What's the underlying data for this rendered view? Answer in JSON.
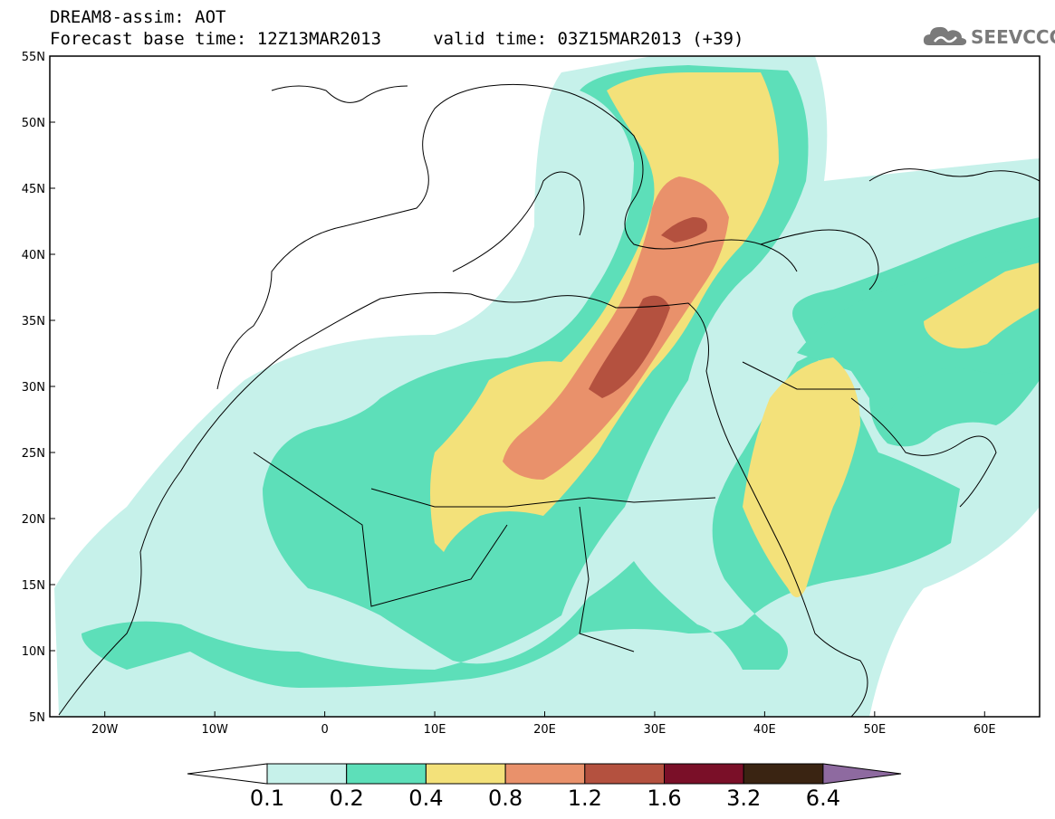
{
  "header": {
    "line1": "DREAM8-assim: AOT",
    "line2": "Forecast base time: 12Z13MAR2013     valid time: 03Z15MAR2013 (+39)"
  },
  "logo": {
    "text": "SEEVCCC",
    "icon": "cloud-icon"
  },
  "map": {
    "lat_labels": [
      "55N",
      "50N",
      "45N",
      "40N",
      "35N",
      "30N",
      "25N",
      "20N",
      "15N",
      "10N",
      "5N"
    ],
    "lon_labels": [
      "20W",
      "10W",
      "0",
      "10E",
      "20E",
      "30E",
      "40E",
      "50E",
      "60E"
    ],
    "extent": {
      "lon": [
        -25,
        65
      ],
      "lat": [
        5,
        55
      ]
    }
  },
  "colorbar": {
    "labels": [
      "0.1",
      "0.2",
      "0.4",
      "0.8",
      "1.2",
      "1.6",
      "3.2",
      "6.4"
    ],
    "colors": [
      "#ffffff",
      "#c6f1ea",
      "#5ddfb9",
      "#f3e17a",
      "#e9916b",
      "#b4513f",
      "#7a0f28",
      "#3a2412",
      "#8e6aa0"
    ]
  }
}
